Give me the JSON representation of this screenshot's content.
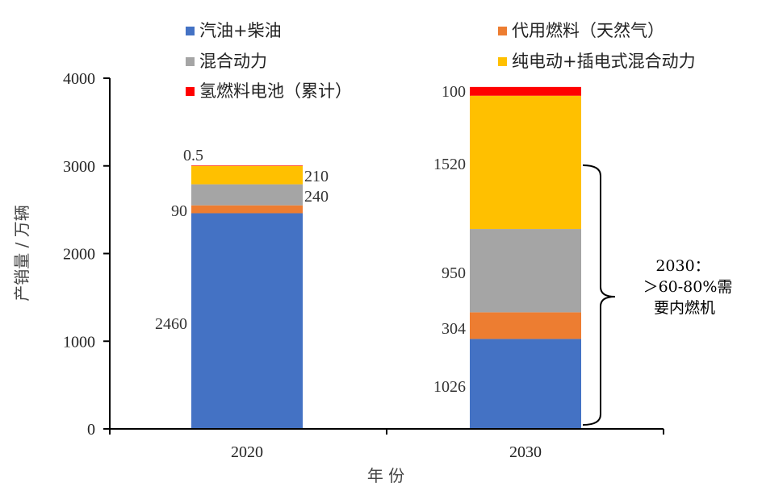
{
  "chart_data": {
    "type": "bar",
    "stacked": true,
    "categories": [
      "2020",
      "2030"
    ],
    "xlabel": "年 份",
    "ylabel": "产销量 / 万辆",
    "ylim": [
      0,
      4000
    ],
    "yticks": [
      "0",
      "1000",
      "2000",
      "3000",
      "4000"
    ],
    "grid": false,
    "legend_position": "top",
    "series": [
      {
        "name": "汽油+柴油",
        "color": "#4472C4",
        "values": [
          2460,
          1026
        ],
        "labels": [
          "2460",
          "1026"
        ]
      },
      {
        "name": "代用燃料（天然气）",
        "color": "#ED7D31",
        "values": [
          90,
          304
        ],
        "labels": [
          "90",
          "304"
        ]
      },
      {
        "name": "混合动力",
        "color": "#A5A5A5",
        "values": [
          240,
          950
        ],
        "labels": [
          "240",
          "950"
        ]
      },
      {
        "name": "纯电动+插电式混合动力",
        "color": "#FFC000",
        "values": [
          210,
          1520
        ],
        "labels": [
          "210",
          "1520"
        ]
      },
      {
        "name": "氢燃料电池（累计）",
        "color": "#FF0000",
        "values": [
          0.5,
          100
        ],
        "labels": [
          "0.5",
          "100"
        ]
      }
    ],
    "annotation": {
      "lines": [
        "2030：",
        "＞60-80%需",
        "要内燃机"
      ]
    }
  }
}
